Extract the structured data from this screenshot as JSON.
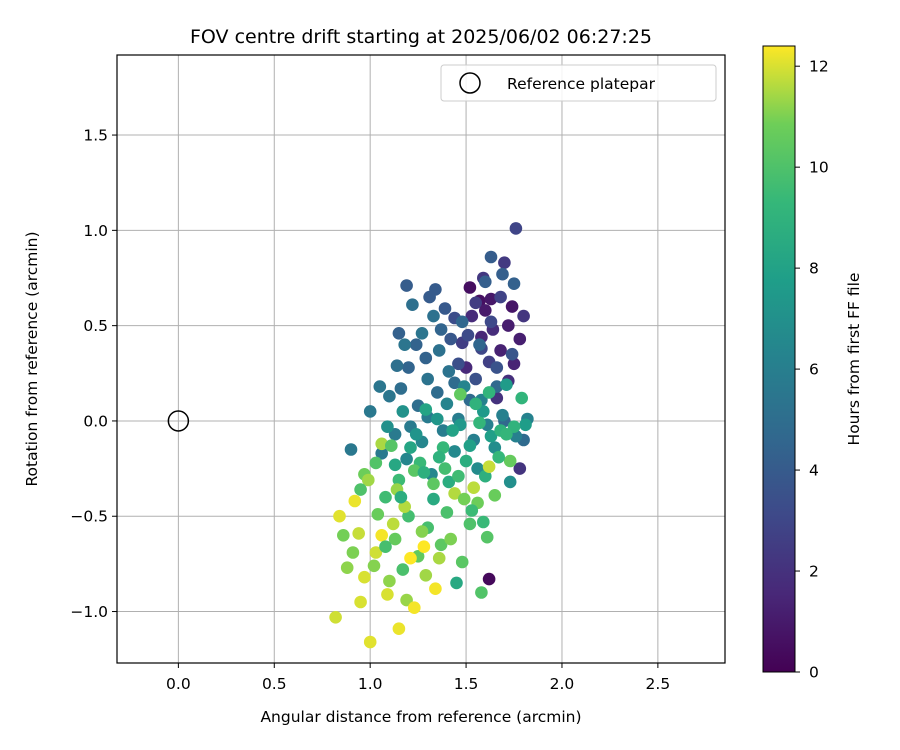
{
  "chart_data": {
    "type": "scatter",
    "title": "FOV centre drift starting at 2025/06/02 06:27:25",
    "xlabel": "Angular distance from reference (arcmin)",
    "ylabel": "Rotation from reference (arcmin)",
    "xlim": [
      -0.32,
      2.85
    ],
    "ylim": [
      -1.27,
      1.92
    ],
    "xticks": [
      0.0,
      0.5,
      1.0,
      1.5,
      2.0,
      2.5
    ],
    "xtick_labels": [
      "0.0",
      "0.5",
      "1.0",
      "1.5",
      "2.0",
      "2.5"
    ],
    "yticks": [
      -1.0,
      -0.5,
      0.0,
      0.5,
      1.0,
      1.5
    ],
    "ytick_labels": [
      "−1.0",
      "−0.5",
      "0.0",
      "0.5",
      "1.0",
      "1.5"
    ],
    "grid": true,
    "legend": {
      "position": "top-right",
      "entries": [
        "Reference platepar"
      ]
    },
    "reference_point": {
      "x": 0.0,
      "y": 0.0
    },
    "colorbar": {
      "label": "Hours from first FF file",
      "range": [
        0,
        12.4
      ],
      "ticks": [
        0,
        2,
        4,
        6,
        8,
        10,
        12
      ],
      "tick_labels": [
        "0",
        "2",
        "4",
        "6",
        "8",
        "10",
        "12"
      ],
      "colormap": "viridis"
    },
    "series": [
      {
        "points": [
          [
            1.62,
            -0.83,
            0.3
          ],
          [
            1.52,
            0.7,
            0.5
          ],
          [
            1.57,
            0.63,
            0.6
          ],
          [
            1.74,
            0.6,
            0.8
          ],
          [
            1.63,
            0.64,
            0.9
          ],
          [
            1.6,
            0.58,
            1.0
          ],
          [
            1.72,
            0.5,
            1.1
          ],
          [
            1.78,
            0.43,
            1.2
          ],
          [
            1.68,
            0.37,
            1.3
          ],
          [
            1.75,
            0.3,
            1.4
          ],
          [
            1.58,
            0.44,
            1.5
          ],
          [
            1.5,
            0.28,
            1.6
          ],
          [
            1.53,
            0.55,
            1.7
          ],
          [
            1.64,
            0.48,
            1.8
          ],
          [
            1.72,
            0.21,
            1.9
          ],
          [
            1.66,
            0.12,
            2.0
          ],
          [
            1.78,
            -0.25,
            2.1
          ],
          [
            1.8,
            0.55,
            2.2
          ],
          [
            1.59,
            0.75,
            2.3
          ],
          [
            1.7,
            0.83,
            2.4
          ],
          [
            1.55,
            0.62,
            2.5
          ],
          [
            1.48,
            0.41,
            2.6
          ],
          [
            1.62,
            0.31,
            2.7
          ],
          [
            1.68,
            0.65,
            2.8
          ],
          [
            1.76,
            1.01,
            2.9
          ],
          [
            1.58,
            0.38,
            3.0
          ],
          [
            1.63,
            0.52,
            3.1
          ],
          [
            1.51,
            0.45,
            3.2
          ],
          [
            1.44,
            0.54,
            3.3
          ],
          [
            1.46,
            0.3,
            3.4
          ],
          [
            1.55,
            0.22,
            3.5
          ],
          [
            1.66,
            0.28,
            3.6
          ],
          [
            1.74,
            0.35,
            3.7
          ],
          [
            1.42,
            0.43,
            3.8
          ],
          [
            1.39,
            0.59,
            3.9
          ],
          [
            1.34,
            0.69,
            4.0
          ],
          [
            1.31,
            0.65,
            4.0
          ],
          [
            1.19,
            0.71,
            4.1
          ],
          [
            1.63,
            0.86,
            4.1
          ],
          [
            1.69,
            0.77,
            4.2
          ],
          [
            1.6,
            0.73,
            4.2
          ],
          [
            1.75,
            0.72,
            4.3
          ],
          [
            1.15,
            0.46,
            4.3
          ],
          [
            1.24,
            0.4,
            4.4
          ],
          [
            1.29,
            0.33,
            4.4
          ],
          [
            1.2,
            0.28,
            4.5
          ],
          [
            1.37,
            0.48,
            4.5
          ],
          [
            1.48,
            0.52,
            4.6
          ],
          [
            1.57,
            0.4,
            4.6
          ],
          [
            1.66,
            0.18,
            4.7
          ],
          [
            1.7,
            0.0,
            4.7
          ],
          [
            1.8,
            -0.1,
            4.8
          ],
          [
            1.52,
            0.11,
            4.8
          ],
          [
            1.44,
            0.2,
            4.9
          ],
          [
            1.35,
            0.15,
            4.9
          ],
          [
            1.25,
            0.08,
            5.0
          ],
          [
            1.16,
            0.17,
            5.0
          ],
          [
            1.14,
            0.29,
            5.1
          ],
          [
            1.22,
            0.61,
            5.1
          ],
          [
            1.33,
            0.55,
            5.2
          ],
          [
            1.36,
            0.37,
            5.2
          ],
          [
            1.41,
            0.26,
            5.3
          ],
          [
            1.3,
            0.22,
            5.3
          ],
          [
            1.27,
            0.46,
            5.4
          ],
          [
            1.18,
            0.4,
            5.4
          ],
          [
            1.1,
            0.13,
            5.5
          ],
          [
            1.05,
            0.18,
            5.5
          ],
          [
            1.0,
            0.05,
            5.6
          ],
          [
            0.9,
            -0.15,
            5.6
          ],
          [
            1.06,
            -0.17,
            5.7
          ],
          [
            1.13,
            -0.07,
            5.7
          ],
          [
            1.21,
            -0.03,
            5.8
          ],
          [
            1.3,
            0.02,
            5.8
          ],
          [
            1.38,
            -0.05,
            5.9
          ],
          [
            1.46,
            0.01,
            5.9
          ],
          [
            1.54,
            -0.1,
            6.0
          ],
          [
            1.61,
            -0.02,
            6.0
          ],
          [
            1.69,
            0.03,
            6.1
          ],
          [
            1.76,
            -0.08,
            6.1
          ],
          [
            1.82,
            0.01,
            6.2
          ],
          [
            1.58,
            0.11,
            6.2
          ],
          [
            1.49,
            0.18,
            6.3
          ],
          [
            1.4,
            0.09,
            6.3
          ],
          [
            1.27,
            -0.11,
            6.4
          ],
          [
            1.19,
            -0.2,
            6.4
          ],
          [
            1.32,
            -0.28,
            6.5
          ],
          [
            1.44,
            -0.16,
            6.6
          ],
          [
            1.56,
            -0.25,
            6.7
          ],
          [
            1.65,
            -0.14,
            6.8
          ],
          [
            1.73,
            -0.32,
            6.9
          ],
          [
            1.09,
            -0.03,
            7.0
          ],
          [
            1.17,
            0.05,
            7.1
          ],
          [
            1.24,
            -0.07,
            7.2
          ],
          [
            1.35,
            0.01,
            7.3
          ],
          [
            1.47,
            -0.02,
            7.4
          ],
          [
            1.59,
            0.05,
            7.5
          ],
          [
            1.71,
            0.19,
            7.6
          ],
          [
            1.81,
            -0.02,
            7.7
          ],
          [
            1.63,
            -0.08,
            7.8
          ],
          [
            1.52,
            -0.13,
            7.9
          ],
          [
            1.43,
            -0.05,
            8.0
          ],
          [
            1.29,
            0.06,
            8.1
          ],
          [
            1.21,
            -0.14,
            8.2
          ],
          [
            1.13,
            -0.23,
            8.3
          ],
          [
            1.45,
            -0.85,
            8.4
          ],
          [
            1.33,
            -0.41,
            8.5
          ],
          [
            1.41,
            -0.32,
            8.6
          ],
          [
            1.5,
            -0.21,
            8.7
          ],
          [
            1.6,
            -0.29,
            8.8
          ],
          [
            1.68,
            -0.05,
            8.9
          ],
          [
            1.75,
            -0.03,
            9.0
          ],
          [
            1.79,
            0.12,
            9.1
          ],
          [
            1.57,
            -0.01,
            9.2
          ],
          [
            1.38,
            -0.14,
            9.3
          ],
          [
            1.26,
            -0.22,
            9.4
          ],
          [
            1.15,
            -0.31,
            9.5
          ],
          [
            1.08,
            -0.4,
            9.6
          ],
          [
            1.2,
            -0.5,
            9.7
          ],
          [
            1.3,
            -0.56,
            9.8
          ],
          [
            1.4,
            -0.48,
            9.9
          ],
          [
            1.52,
            -0.54,
            10.0
          ],
          [
            1.58,
            -0.9,
            10.1
          ],
          [
            1.61,
            -0.61,
            10.2
          ],
          [
            1.48,
            -0.74,
            10.3
          ],
          [
            1.37,
            -0.65,
            10.4
          ],
          [
            1.25,
            -0.71,
            10.5
          ],
          [
            1.13,
            -0.62,
            10.6
          ],
          [
            1.04,
            -0.49,
            10.7
          ],
          [
            0.97,
            -0.28,
            10.8
          ],
          [
            0.86,
            -0.6,
            10.9
          ],
          [
            0.91,
            -0.69,
            11.0
          ],
          [
            1.02,
            -0.76,
            11.1
          ],
          [
            1.1,
            -0.84,
            11.2
          ],
          [
            1.19,
            -0.94,
            11.3
          ],
          [
            1.29,
            -0.81,
            11.4
          ],
          [
            1.36,
            -0.72,
            11.5
          ],
          [
            1.44,
            -0.38,
            11.6
          ],
          [
            1.54,
            -0.35,
            11.7
          ],
          [
            1.62,
            -0.24,
            11.8
          ],
          [
            0.82,
            -1.03,
            11.9
          ],
          [
            0.95,
            -0.95,
            12.0
          ],
          [
            1.0,
            -1.16,
            12.1
          ],
          [
            1.15,
            -1.09,
            12.2
          ],
          [
            1.23,
            -0.98,
            12.3
          ],
          [
            1.06,
            -0.6,
            12.3
          ],
          [
            0.92,
            -0.42,
            12.2
          ],
          [
            0.84,
            -0.5,
            12.1
          ],
          [
            0.97,
            -0.82,
            12.0
          ],
          [
            1.09,
            -0.91,
            12.0
          ],
          [
            1.21,
            -0.72,
            12.4
          ],
          [
            1.28,
            -0.66,
            12.4
          ],
          [
            1.34,
            -0.88,
            12.3
          ],
          [
            1.03,
            -0.69,
            11.9
          ],
          [
            0.94,
            -0.59,
            11.8
          ],
          [
            1.12,
            -0.54,
            11.7
          ],
          [
            1.18,
            -0.45,
            11.6
          ],
          [
            1.06,
            -0.12,
            11.5
          ],
          [
            0.99,
            -0.31,
            11.4
          ],
          [
            1.14,
            -0.36,
            11.3
          ],
          [
            0.88,
            -0.77,
            11.2
          ],
          [
            1.27,
            -0.58,
            11.1
          ],
          [
            1.42,
            -0.62,
            11.0
          ],
          [
            1.49,
            -0.41,
            10.9
          ],
          [
            1.56,
            -0.43,
            10.8
          ],
          [
            1.65,
            -0.39,
            10.7
          ],
          [
            1.73,
            -0.21,
            10.6
          ],
          [
            1.47,
            0.14,
            10.5
          ],
          [
            1.33,
            -0.33,
            10.4
          ],
          [
            1.23,
            -0.26,
            10.3
          ],
          [
            1.11,
            -0.13,
            10.2
          ],
          [
            1.03,
            -0.22,
            10.1
          ],
          [
            0.95,
            -0.36,
            10.0
          ],
          [
            1.17,
            -0.78,
            9.9
          ],
          [
            1.08,
            -0.66,
            9.8
          ],
          [
            1.39,
            -0.25,
            9.7
          ],
          [
            1.46,
            -0.29,
            9.6
          ],
          [
            1.53,
            -0.47,
            9.5
          ],
          [
            1.59,
            -0.53,
            9.4
          ],
          [
            1.67,
            -0.19,
            9.3
          ],
          [
            1.71,
            -0.07,
            9.2
          ],
          [
            1.62,
            0.15,
            9.1
          ],
          [
            1.55,
            0.09,
            9.0
          ],
          [
            1.36,
            -0.19,
            8.9
          ],
          [
            1.28,
            -0.27,
            8.8
          ],
          [
            1.16,
            -0.4,
            8.7
          ]
        ]
      }
    ]
  }
}
